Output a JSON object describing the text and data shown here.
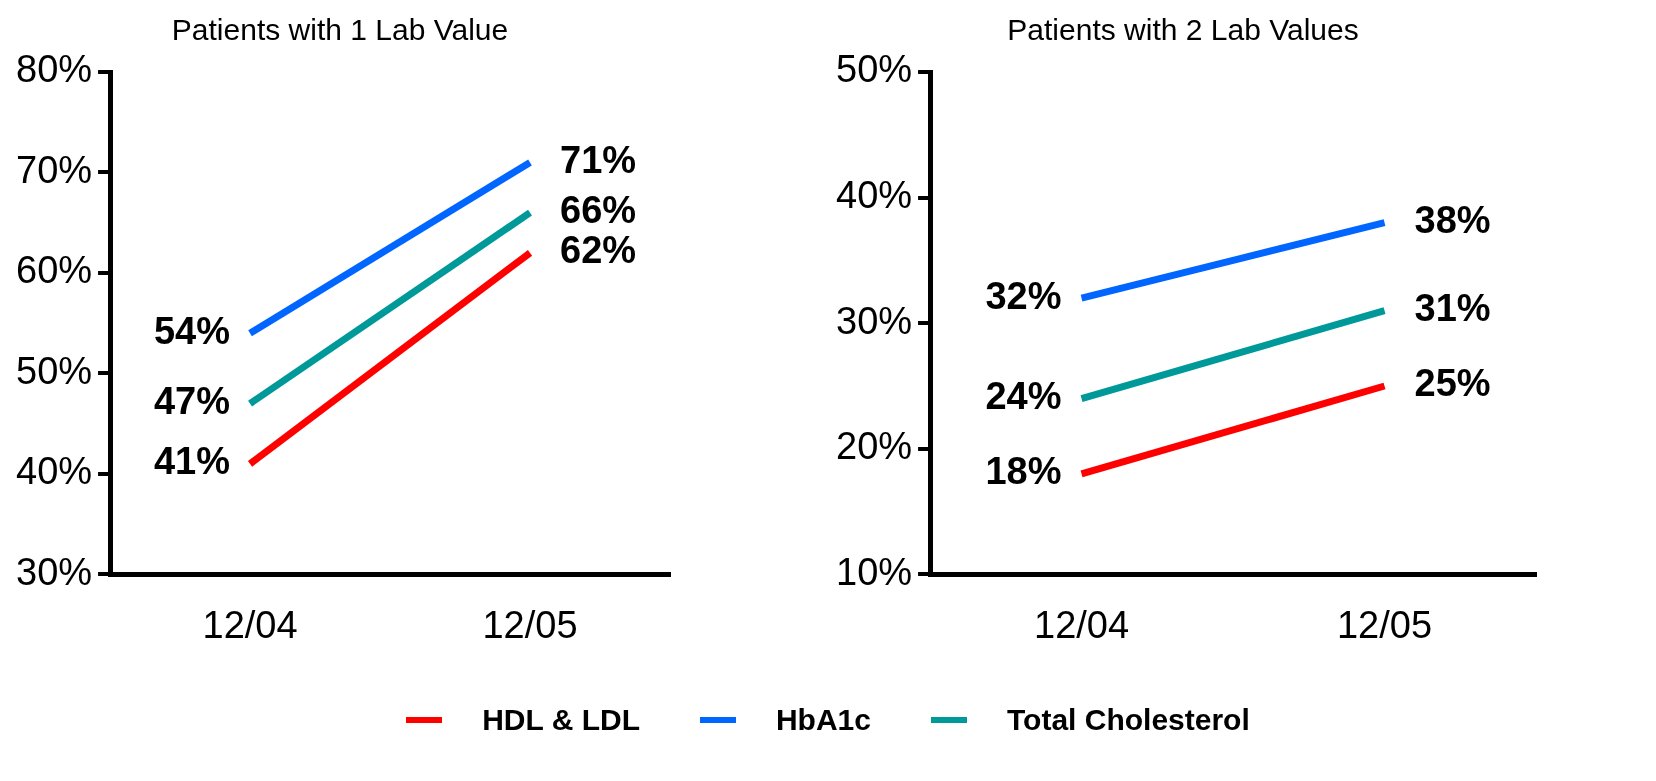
{
  "chart_data": [
    {
      "type": "line",
      "title": "Patients with 1 Lab Value",
      "categories": [
        "12/04",
        "12/05"
      ],
      "ylim": [
        30,
        80
      ],
      "yticks": [
        {
          "value": 30,
          "label": "30%"
        },
        {
          "value": 40,
          "label": "40%"
        },
        {
          "value": 50,
          "label": "50%"
        },
        {
          "value": 60,
          "label": "60%"
        },
        {
          "value": 70,
          "label": "70%"
        },
        {
          "value": 80,
          "label": "80%"
        }
      ],
      "grid": false,
      "legend": "bottom",
      "marker": "none",
      "line_style": "solid",
      "series": [
        {
          "name": "HDL & LDL",
          "color": "#ff0000",
          "values": [
            41,
            62
          ],
          "value_labels": [
            "41%",
            "62%"
          ]
        },
        {
          "name": "HbA1c",
          "color": "#0066ff",
          "values": [
            54,
            71
          ],
          "value_labels": [
            "54%",
            "71%"
          ]
        },
        {
          "name": "Total Cholesterol",
          "color": "#009999",
          "values": [
            47,
            66
          ],
          "value_labels": [
            "47%",
            "66%"
          ]
        }
      ]
    },
    {
      "type": "line",
      "title": "Patients with 2 Lab Values",
      "categories": [
        "12/04",
        "12/05"
      ],
      "ylim": [
        10,
        50
      ],
      "yticks": [
        {
          "value": 10,
          "label": "10%"
        },
        {
          "value": 20,
          "label": "20%"
        },
        {
          "value": 30,
          "label": "30%"
        },
        {
          "value": 40,
          "label": "40%"
        },
        {
          "value": 50,
          "label": "50%"
        }
      ],
      "grid": false,
      "marker": "none",
      "line_style": "solid",
      "series": [
        {
          "color": "#ff0000",
          "values": [
            18,
            25
          ],
          "value_labels": [
            "18%",
            "25%"
          ]
        },
        {
          "color": "#0066ff",
          "values": [
            32,
            38
          ],
          "value_labels": [
            "32%",
            "38%"
          ]
        },
        {
          "color": "#009999",
          "values": [
            24,
            31
          ],
          "value_labels": [
            "24%",
            "31%"
          ]
        }
      ]
    }
  ]
}
